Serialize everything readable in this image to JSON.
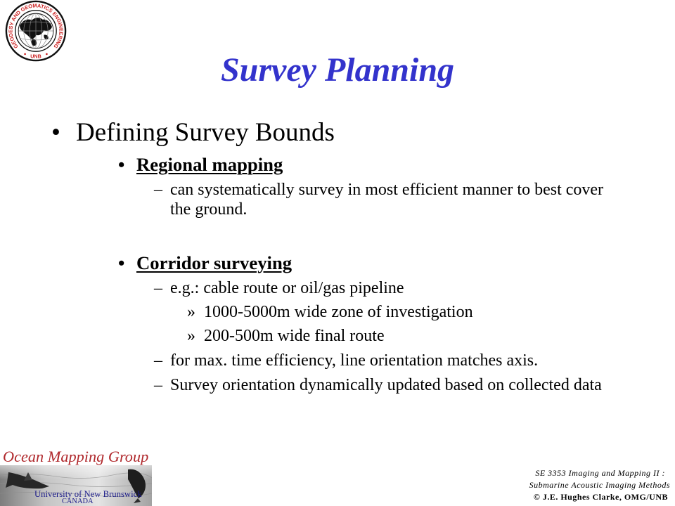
{
  "slide": {
    "title": "Survey Planning"
  },
  "logo": {
    "ring_text": "GEODESY AND GEOMATICS ENGINEERING",
    "bottom_text": "UNB",
    "icon": "globe-seal-icon"
  },
  "content": {
    "main": {
      "marker": "•",
      "text": "Defining Survey Bounds"
    },
    "regional": {
      "marker": "•",
      "heading": "Regional mapping",
      "points": [
        {
          "marker": "–",
          "lines": [
            "can systematically survey in most efficient manner to best cover",
            "the ground."
          ]
        }
      ]
    },
    "corridor": {
      "marker": "•",
      "heading": "Corridor surveying",
      "points": [
        {
          "marker": "–",
          "text": "e.g.: cable route or oil/gas pipeline",
          "subpoints": [
            {
              "marker": "»",
              "text": "1000-5000m wide zone of investigation"
            },
            {
              "marker": "»",
              "text": "200-500m wide final route"
            }
          ]
        },
        {
          "marker": "–",
          "text": "for max. time efficiency, line orientation matches axis."
        },
        {
          "marker": "–",
          "text": "Survey orientation dynamically updated based on collected data"
        }
      ]
    }
  },
  "footer": {
    "group_name": "Ocean Mapping Group",
    "university": "University of New Brunswick",
    "country": "CANADA",
    "course": "SE 3353 Imaging and Mapping II :",
    "course_subtitle": "Submarine Acoustic Imaging Methods",
    "copyright": "© J.E. Hughes Clarke, OMG/UNB"
  },
  "colors": {
    "title": "#3333CC",
    "group_name": "#B0282C",
    "university": "#1C1C8A",
    "logo_text": "#CC2222"
  }
}
